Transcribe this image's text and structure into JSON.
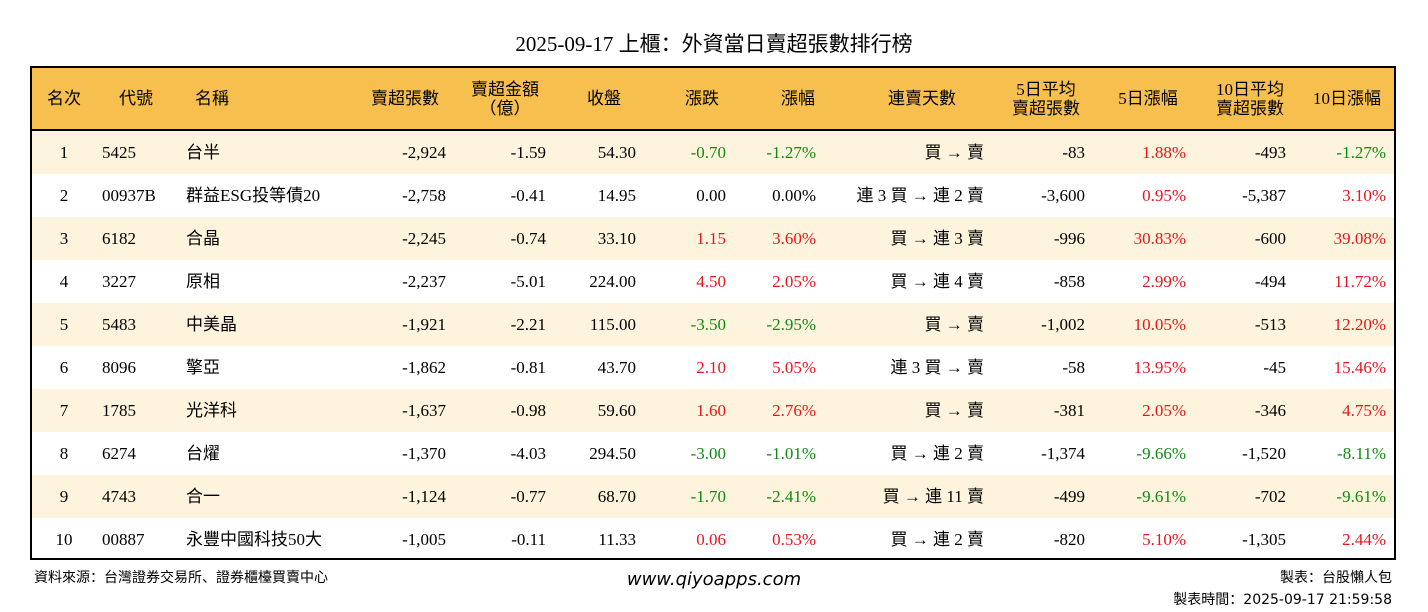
{
  "title": "2025-09-17 上櫃：外資當日賣超張數排行榜",
  "colors": {
    "header_bg": "#F6BF4E",
    "alt_row_bg": "#FEF3DC",
    "up": "#E8141B",
    "down": "#0E8A12"
  },
  "headers": [
    "名次",
    "代號",
    "名稱",
    "賣超張數",
    "賣超金額\n（億）",
    "收盤",
    "漲跌",
    "漲幅",
    "連賣天數",
    "5日平均\n賣超張數",
    "5日漲幅",
    "10日平均\n賣超張數",
    "10日漲幅"
  ],
  "rows": [
    {
      "rank": "1",
      "code": "5425",
      "name": "台半",
      "net": "-2,924",
      "amt": "-1.59",
      "close": "54.30",
      "chg": "-0.70",
      "pct": "-1.27%",
      "dir": "down",
      "streak": "買 → 賣",
      "avg5": "-83",
      "pct5": "1.88%",
      "dir5": "up",
      "avg10": "-493",
      "pct10": "-1.27%",
      "dir10": "down"
    },
    {
      "rank": "2",
      "code": "00937B",
      "name": "群益ESG投等債20",
      "net": "-2,758",
      "amt": "-0.41",
      "close": "14.95",
      "chg": "0.00",
      "pct": "0.00%",
      "dir": "flat",
      "streak": "連 3 買 → 連 2 賣",
      "avg5": "-3,600",
      "pct5": "0.95%",
      "dir5": "up",
      "avg10": "-5,387",
      "pct10": "3.10%",
      "dir10": "up"
    },
    {
      "rank": "3",
      "code": "6182",
      "name": "合晶",
      "net": "-2,245",
      "amt": "-0.74",
      "close": "33.10",
      "chg": "1.15",
      "pct": "3.60%",
      "dir": "up",
      "streak": "買 → 連 3 賣",
      "avg5": "-996",
      "pct5": "30.83%",
      "dir5": "up",
      "avg10": "-600",
      "pct10": "39.08%",
      "dir10": "up"
    },
    {
      "rank": "4",
      "code": "3227",
      "name": "原相",
      "net": "-2,237",
      "amt": "-5.01",
      "close": "224.00",
      "chg": "4.50",
      "pct": "2.05%",
      "dir": "up",
      "streak": "買 → 連 4 賣",
      "avg5": "-858",
      "pct5": "2.99%",
      "dir5": "up",
      "avg10": "-494",
      "pct10": "11.72%",
      "dir10": "up"
    },
    {
      "rank": "5",
      "code": "5483",
      "name": "中美晶",
      "net": "-1,921",
      "amt": "-2.21",
      "close": "115.00",
      "chg": "-3.50",
      "pct": "-2.95%",
      "dir": "down",
      "streak": "買 → 賣",
      "avg5": "-1,002",
      "pct5": "10.05%",
      "dir5": "up",
      "avg10": "-513",
      "pct10": "12.20%",
      "dir10": "up"
    },
    {
      "rank": "6",
      "code": "8096",
      "name": "擎亞",
      "net": "-1,862",
      "amt": "-0.81",
      "close": "43.70",
      "chg": "2.10",
      "pct": "5.05%",
      "dir": "up",
      "streak": "連 3 買 → 賣",
      "avg5": "-58",
      "pct5": "13.95%",
      "dir5": "up",
      "avg10": "-45",
      "pct10": "15.46%",
      "dir10": "up"
    },
    {
      "rank": "7",
      "code": "1785",
      "name": "光洋科",
      "net": "-1,637",
      "amt": "-0.98",
      "close": "59.60",
      "chg": "1.60",
      "pct": "2.76%",
      "dir": "up",
      "streak": "買 → 賣",
      "avg5": "-381",
      "pct5": "2.05%",
      "dir5": "up",
      "avg10": "-346",
      "pct10": "4.75%",
      "dir10": "up"
    },
    {
      "rank": "8",
      "code": "6274",
      "name": "台燿",
      "net": "-1,370",
      "amt": "-4.03",
      "close": "294.50",
      "chg": "-3.00",
      "pct": "-1.01%",
      "dir": "down",
      "streak": "買 → 連 2 賣",
      "avg5": "-1,374",
      "pct5": "-9.66%",
      "dir5": "down",
      "avg10": "-1,520",
      "pct10": "-8.11%",
      "dir10": "down"
    },
    {
      "rank": "9",
      "code": "4743",
      "name": "合一",
      "net": "-1,124",
      "amt": "-0.77",
      "close": "68.70",
      "chg": "-1.70",
      "pct": "-2.41%",
      "dir": "down",
      "streak": "買 → 連 11 賣",
      "avg5": "-499",
      "pct5": "-9.61%",
      "dir5": "down",
      "avg10": "-702",
      "pct10": "-9.61%",
      "dir10": "down"
    },
    {
      "rank": "10",
      "code": "00887",
      "name": "永豐中國科技50大",
      "net": "-1,005",
      "amt": "-0.11",
      "close": "11.33",
      "chg": "0.06",
      "pct": "0.53%",
      "dir": "up",
      "streak": "買 → 連 2 賣",
      "avg5": "-820",
      "pct5": "5.10%",
      "dir5": "up",
      "avg10": "-1,305",
      "pct10": "2.44%",
      "dir10": "up"
    }
  ],
  "footer": {
    "source": "資料來源：台灣證券交易所、證券櫃檯買賣中心",
    "site": "www.qiyoapps.com",
    "maker": "製表：台股懶人包",
    "time": "製表時間：2025-09-17 21:59:58"
  }
}
